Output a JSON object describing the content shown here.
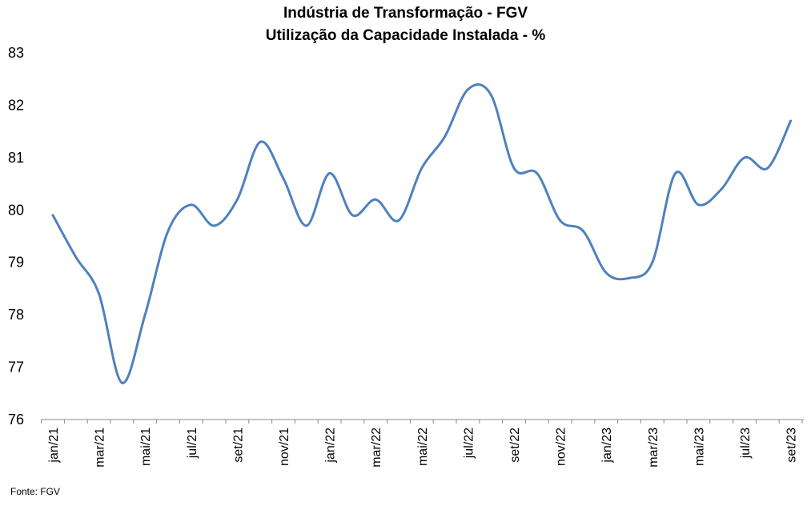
{
  "chart_data": {
    "type": "line",
    "title": "Indústria de Transformação - FGV",
    "subtitle": "Utilização da Capacidade Instalada - %",
    "xlabel": "",
    "ylabel": "",
    "ylim": [
      76,
      83
    ],
    "y_ticks": [
      "76",
      "77",
      "78",
      "79",
      "80",
      "81",
      "82",
      "83"
    ],
    "grid": false,
    "x": [
      "jan/21",
      "fev/21",
      "mar/21",
      "abr/21",
      "mai/21",
      "jun/21",
      "jul/21",
      "ago/21",
      "set/21",
      "out/21",
      "nov/21",
      "dez/21",
      "jan/22",
      "fev/22",
      "mar/22",
      "abr/22",
      "mai/22",
      "jun/22",
      "jul/22",
      "ago/22",
      "set/22",
      "out/22",
      "nov/22",
      "dez/22",
      "jan/23",
      "fev/23",
      "mar/23",
      "abr/23",
      "mai/23",
      "jun/23",
      "jul/23",
      "ago/23",
      "set/23"
    ],
    "x_tick_labels": [
      "jan/21",
      "mar/21",
      "mai/21",
      "jul/21",
      "set/21",
      "nov/21",
      "jan/22",
      "mar/22",
      "mai/22",
      "jul/22",
      "set/22",
      "nov/22",
      "jan/23",
      "mar/23",
      "mai/23",
      "jul/23",
      "set/23"
    ],
    "series": [
      {
        "color": "#4f81bd",
        "values": [
          79.9,
          79.1,
          78.4,
          76.7,
          78.0,
          79.6,
          80.1,
          79.7,
          80.2,
          81.3,
          80.6,
          79.7,
          80.7,
          79.9,
          80.2,
          79.8,
          80.8,
          81.4,
          82.3,
          82.2,
          80.8,
          80.7,
          79.8,
          79.6,
          78.8,
          78.7,
          79.0,
          80.7,
          80.1,
          80.4,
          81.0,
          80.8,
          81.7
        ]
      }
    ]
  },
  "source": "Fonte: FGV"
}
